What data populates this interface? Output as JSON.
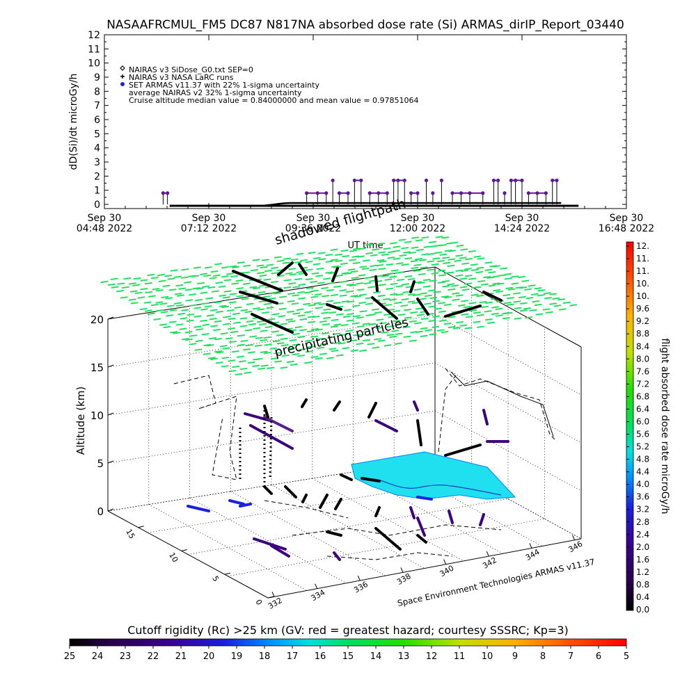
{
  "chart_data": [
    {
      "type": "scatter",
      "title": "NASAAFRCMUL_FM5 DC87 N817NA absorbed dose rate (Si) ARMAS_dirIP_Report_03440",
      "ylabel": "dD(Si)/dt microGy/h",
      "xlabel": "UT time",
      "ylim": [
        0,
        12
      ],
      "yticks": [
        "0",
        "1",
        "2",
        "3",
        "4",
        "5",
        "6",
        "7",
        "8",
        "9",
        "10",
        "11",
        "12"
      ],
      "xticks": [
        {
          "date": "Sep 30",
          "time": "04:48 2022"
        },
        {
          "date": "Sep 30",
          "time": "07:12 2022"
        },
        {
          "date": "Sep 30",
          "time": "09:36 2022"
        },
        {
          "date": "Sep 30",
          "time": "12:00 2022"
        },
        {
          "date": "Sep 30",
          "time": "14:24 2022"
        },
        {
          "date": "Sep 30",
          "time": "16:48 2022"
        }
      ],
      "xlim_hours": [
        4.8,
        16.8
      ],
      "legend": [
        "NAIRAS v3 SiDose_G0.txt SEP=0",
        "NAIRAS v3 NASA LaRC runs",
        "SET ARMAS v11.37 with 22% 1-sigma uncertainty",
        "average NAIRAS v2 32% 1-sigma uncertainty",
        "Cruise altitude median value = 0.84000000 and mean value = 0.97851064"
      ],
      "legend_position": "top-left",
      "legend_marker_colors": [
        "#000000",
        "#000000",
        "#2020e0"
      ],
      "background_dose": {
        "x_start": 6.3,
        "x_end": 15.7,
        "value": 0.0
      },
      "armas_points": [
        {
          "x": 6.15,
          "y": 0.8
        },
        {
          "x": 6.25,
          "y": 0.8
        },
        {
          "x": 9.45,
          "y": 0.8
        },
        {
          "x": 9.7,
          "y": 0.8
        },
        {
          "x": 9.9,
          "y": 0.8
        },
        {
          "x": 10.05,
          "y": 1.7
        },
        {
          "x": 10.2,
          "y": 0.8
        },
        {
          "x": 10.4,
          "y": 0.8
        },
        {
          "x": 10.55,
          "y": 1.7
        },
        {
          "x": 10.7,
          "y": 1.7
        },
        {
          "x": 10.9,
          "y": 0.8
        },
        {
          "x": 11.1,
          "y": 0.8
        },
        {
          "x": 11.3,
          "y": 0.8
        },
        {
          "x": 11.45,
          "y": 1.7
        },
        {
          "x": 11.55,
          "y": 1.7
        },
        {
          "x": 11.7,
          "y": 1.7
        },
        {
          "x": 11.85,
          "y": 0.8
        },
        {
          "x": 12.0,
          "y": 0.8
        },
        {
          "x": 12.2,
          "y": 1.7
        },
        {
          "x": 12.35,
          "y": 0.8
        },
        {
          "x": 12.55,
          "y": 1.7
        },
        {
          "x": 12.8,
          "y": 0.8
        },
        {
          "x": 13.0,
          "y": 0.8
        },
        {
          "x": 13.2,
          "y": 0.8
        },
        {
          "x": 13.5,
          "y": 0.8
        },
        {
          "x": 13.75,
          "y": 1.7
        },
        {
          "x": 13.85,
          "y": 1.7
        },
        {
          "x": 14.0,
          "y": 0.8
        },
        {
          "x": 14.15,
          "y": 1.7
        },
        {
          "x": 14.25,
          "y": 1.7
        },
        {
          "x": 14.4,
          "y": 1.7
        },
        {
          "x": 14.55,
          "y": 0.8
        },
        {
          "x": 14.75,
          "y": 0.8
        },
        {
          "x": 14.95,
          "y": 0.8
        },
        {
          "x": 15.1,
          "y": 1.7
        },
        {
          "x": 15.2,
          "y": 1.7
        }
      ]
    },
    {
      "type": "scatter",
      "zlabel": "Altitude (km)",
      "zticks": [
        "0",
        "5",
        "10",
        "15",
        "20"
      ],
      "xticks": [
        "332",
        "334",
        "336",
        "338",
        "340",
        "342",
        "344",
        "346"
      ],
      "yticks": [
        "0",
        "5",
        "10",
        "15"
      ],
      "annotations": [
        "shadowed flightpath",
        "precipitating particles"
      ],
      "credit": "Space Environment Technologies ARMAS v11.37",
      "grid": true,
      "colorbar": {
        "label": "flight absorbed dose rate microGy/h",
        "ticks": [
          "12.",
          "11.",
          "11.",
          "10.",
          "10.",
          "9.6",
          "9.2",
          "8.8",
          "8.4",
          "8.0",
          "7.6",
          "7.2",
          "6.8",
          "6.4",
          "6.0",
          "5.6",
          "5.2",
          "4.8",
          "4.4",
          "4.0",
          "3.6",
          "3.2",
          "2.8",
          "2.4",
          "2.0",
          "1.6",
          "1.2",
          "0.8",
          "0.4",
          "0.0"
        ]
      },
      "bottom_colorbar": {
        "label": "Cutoff rigidity (Rc) >25 km (GV: red = greatest hazard; courtesy SSSRC; Kp=3)",
        "ticks": [
          "25",
          "24",
          "23",
          "22",
          "21",
          "20",
          "19",
          "18",
          "17",
          "16",
          "15",
          "14",
          "13",
          "12",
          "11",
          "10",
          "9",
          "8",
          "7",
          "6",
          "5"
        ]
      }
    }
  ]
}
